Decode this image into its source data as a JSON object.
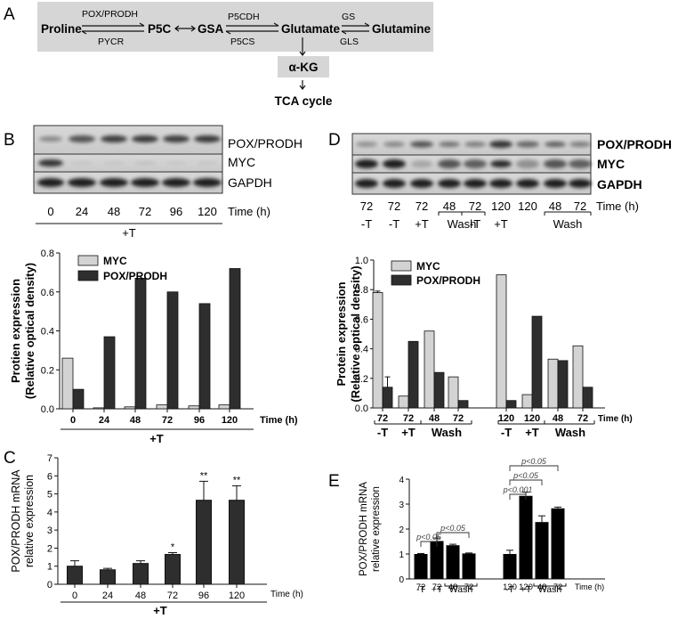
{
  "panels": {
    "A": {
      "letter": "A",
      "pathway": {
        "proline": "Proline",
        "p5c": "P5C",
        "gsa": "GSA",
        "glutamate": "Glutamate",
        "glutamine": "Glutamine",
        "akg": "α-KG",
        "tca": "TCA cycle",
        "enz_pox": "POX/PRODH",
        "enz_pycr": "PYCR",
        "enz_p5cdh": "P5CDH",
        "enz_p5cs": "P5CS",
        "enz_gs": "GS",
        "enz_gls": "GLS"
      }
    },
    "B": {
      "letter": "B",
      "blot_labels": [
        "POX/PRODH",
        "MYC",
        "GAPDH"
      ],
      "lanes": [
        "0",
        "24",
        "48",
        "72",
        "96",
        "120"
      ],
      "time_label": "Time (h)",
      "treatment": "+T"
    },
    "D": {
      "letter": "D",
      "blot_labels": [
        "POX/PRODH",
        "MYC",
        "GAPDH"
      ],
      "lanes": [
        "72",
        "72",
        "72",
        "48",
        "72",
        "120",
        "120",
        "48",
        "72"
      ],
      "time_label": "Time (h)",
      "groups": [
        "-T",
        "-T",
        "+T",
        "Wash",
        "-T",
        "+T",
        "Wash"
      ]
    },
    "C": {
      "letter": "C"
    },
    "E": {
      "letter": "E"
    }
  },
  "chart_data": [
    {
      "id": "B-chart",
      "type": "bar",
      "categories": [
        "0",
        "24",
        "48",
        "72",
        "96",
        "120"
      ],
      "series": [
        {
          "name": "MYC",
          "values": [
            0.26,
            0.005,
            0.01,
            0.02,
            0.015,
            0.02
          ],
          "color": "#d3d3d3"
        },
        {
          "name": "POX/PRODH",
          "values": [
            0.1,
            0.37,
            0.67,
            0.6,
            0.54,
            0.72
          ],
          "color": "#2e2e2e"
        }
      ],
      "xlabel": "Time (h)",
      "ylabel_lines": [
        "Protien expression",
        "(Relative optical density)"
      ],
      "ylim": [
        0,
        0.8
      ],
      "yticks": [
        "0.0",
        "0.2",
        "0.4",
        "0.6",
        "0.8"
      ],
      "group_label": "+T",
      "legend": "top-left"
    },
    {
      "id": "C-chart",
      "type": "bar",
      "categories": [
        "0",
        "24",
        "48",
        "72",
        "96",
        "120"
      ],
      "series": [
        {
          "values": [
            1.0,
            0.8,
            1.15,
            1.65,
            4.65,
            4.65
          ],
          "errors": [
            0.3,
            0.08,
            0.15,
            0.1,
            1.05,
            0.8
          ],
          "color": "#2e2e2e"
        }
      ],
      "annotations": [
        "",
        "",
        "",
        "*",
        "**",
        "**"
      ],
      "xlabel": "Time (h)",
      "ylabel_lines": [
        "POX/PRODH mRNA",
        "relative expression"
      ],
      "ylim": [
        0,
        7
      ],
      "yticks": [
        "0",
        "1",
        "2",
        "3",
        "4",
        "5",
        "6",
        "7"
      ],
      "group_label": "+T"
    },
    {
      "id": "D-chart",
      "type": "bar",
      "categories": [
        "72",
        "72",
        "48",
        "72",
        "120",
        "120",
        "48",
        "72"
      ],
      "series": [
        {
          "name": "MYC",
          "values": [
            0.78,
            0.08,
            0.52,
            0.21,
            0.9,
            0.09,
            0.33,
            0.42
          ],
          "errors": [
            0.01,
            0,
            0,
            0,
            0,
            0,
            0,
            0
          ],
          "color": "#d3d3d3"
        },
        {
          "name": "POX/PRODH",
          "values": [
            0.14,
            0.45,
            0.24,
            0.05,
            0.05,
            0.62,
            0.32,
            0.14
          ],
          "errors": [
            0.07,
            0,
            0,
            0,
            0,
            0,
            0,
            0
          ],
          "color": "#2e2e2e"
        }
      ],
      "groups": [
        "-T",
        "+T",
        "Wash",
        "-T",
        "+T",
        "Wash"
      ],
      "xlabel": "Time (h)",
      "ylabel_lines": [
        "Protein expression",
        "(Relative optical density)"
      ],
      "ylim": [
        0,
        1.0
      ],
      "yticks": [
        "0.0",
        "0.2",
        "0.4",
        "0.6",
        "0.8",
        "1.0"
      ],
      "legend": "top-left"
    },
    {
      "id": "E-chart",
      "type": "bar",
      "categories": [
        "72",
        "72",
        "48",
        "72",
        "120",
        "120",
        "48",
        "72"
      ],
      "series": [
        {
          "values": [
            1.0,
            1.52,
            1.35,
            1.02,
            1.0,
            3.33,
            2.28,
            2.83
          ],
          "errors": [
            0.02,
            0.12,
            0.04,
            0.02,
            0.15,
            0.15,
            0.25,
            0.05
          ],
          "color": "#000000"
        }
      ],
      "groups": [
        "-T",
        "+T",
        "Wash",
        "-T",
        "+T",
        "Wash"
      ],
      "comparisons": [
        "p<0.05",
        "p<0.05",
        "p<0.001",
        "p<0.05",
        "p<0.05"
      ],
      "xlabel": "Time (h)",
      "ylabel_lines": [
        "POX/PRODH mRNA",
        "relative expression"
      ],
      "ylim": [
        0,
        4
      ],
      "yticks": [
        "0",
        "1",
        "2",
        "3",
        "4"
      ]
    }
  ]
}
